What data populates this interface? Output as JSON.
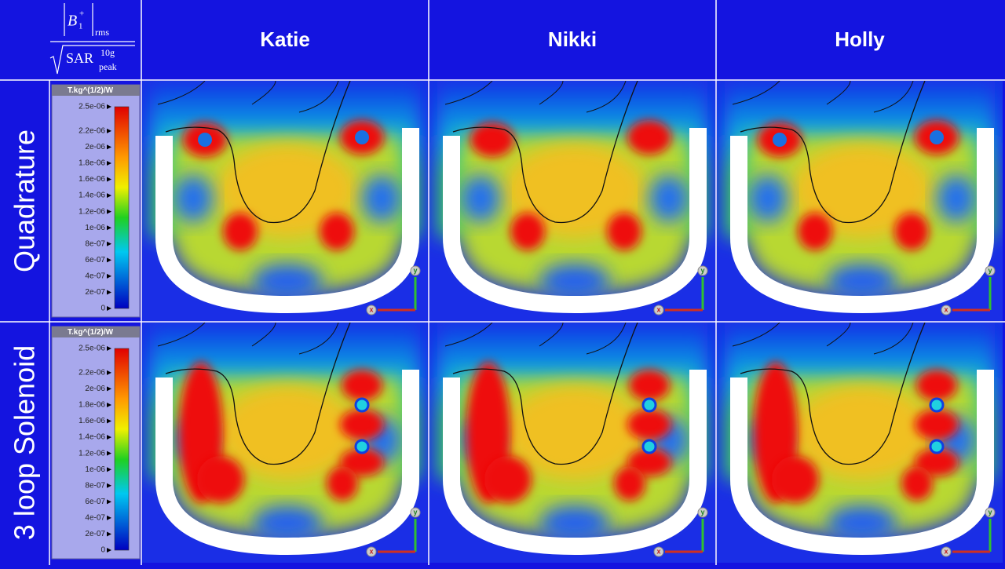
{
  "formula": {
    "symbol": "B",
    "subscript": "1",
    "superscript": "+",
    "norm": "rms",
    "denominator": "SAR",
    "denominator_superscript": "10g",
    "denominator_subscript": "peak"
  },
  "columns": [
    "Katie",
    "Nikki",
    "Holly"
  ],
  "rows": [
    "Quadrature",
    "3 loop Solenoid"
  ],
  "legend": {
    "unit": "T.kg^(1/2)/W",
    "ticks": [
      "2.5e-06",
      "2.2e-06",
      "2e-06",
      "1.8e-06",
      "1.6e-06",
      "1.4e-06",
      "1.2e-06",
      "1e-06",
      "8e-07",
      "6e-07",
      "4e-07",
      "2e-07",
      "0"
    ]
  },
  "axis_labels": {
    "x": "x",
    "y": "y"
  }
}
